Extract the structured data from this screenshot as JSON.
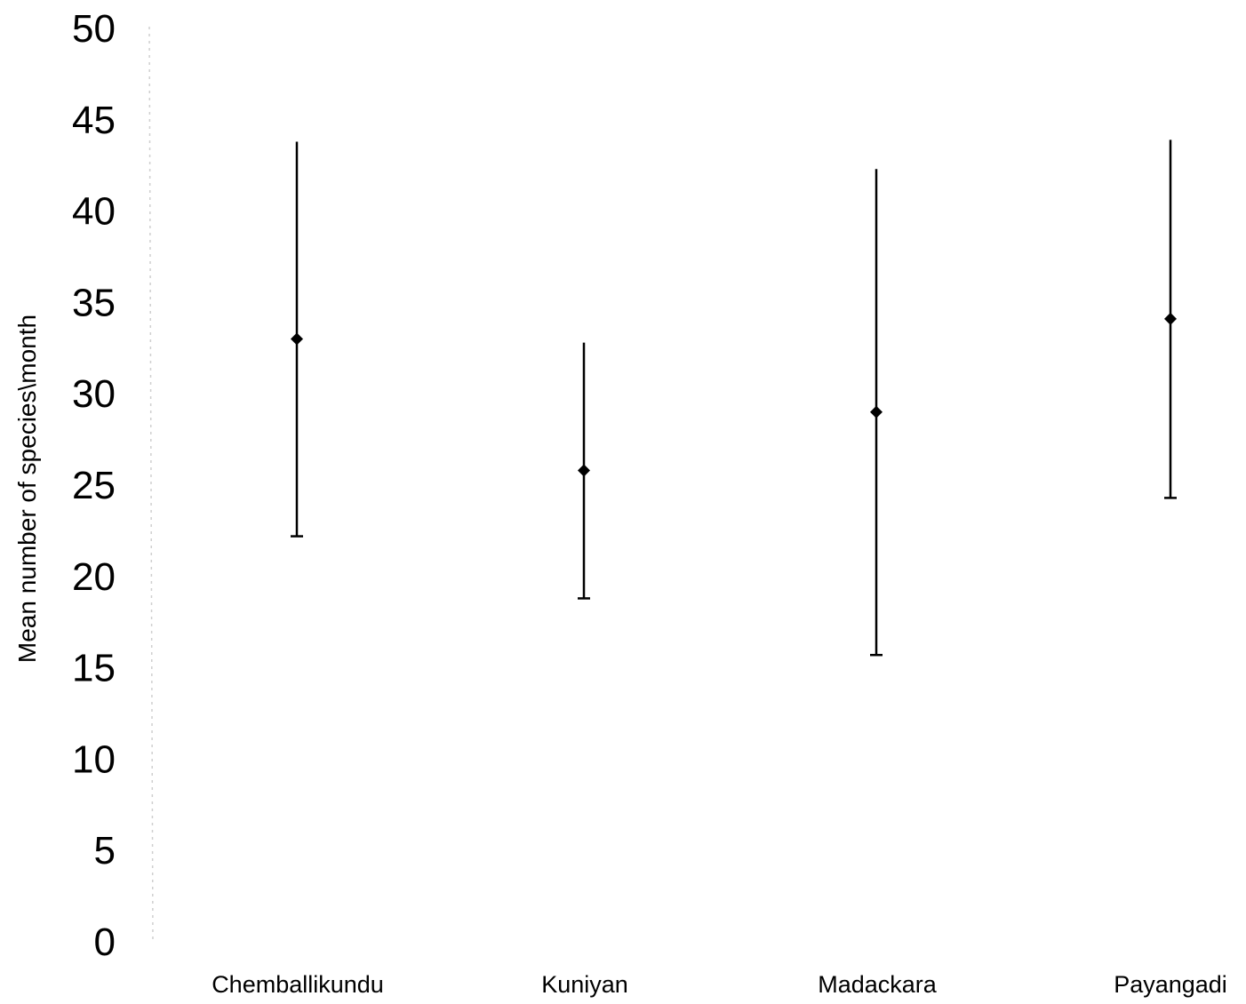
{
  "chart_data": {
    "type": "scatter",
    "title": "",
    "xlabel": "",
    "ylabel": "Mean number of species\\month",
    "ylim": [
      0,
      50
    ],
    "yticks": [
      0,
      5,
      10,
      15,
      20,
      25,
      30,
      35,
      40,
      45,
      50
    ],
    "categories": [
      "Chemballikundu",
      "Kuniyan",
      "Madackara",
      "Payangadi"
    ],
    "series": [
      {
        "values": [
          33.0,
          25.8,
          29.0,
          34.1
        ],
        "error_low": [
          22.2,
          18.8,
          15.7,
          24.3
        ],
        "error_high": [
          43.8,
          32.8,
          42.3,
          43.9
        ]
      }
    ],
    "grid": false,
    "legend": "none",
    "marker": "diamond",
    "color": "#000000"
  }
}
